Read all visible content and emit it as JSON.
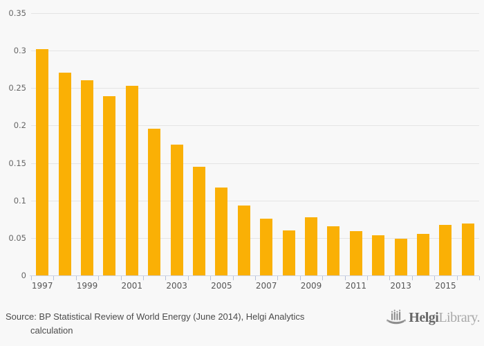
{
  "chart_data": {
    "type": "bar",
    "title": "",
    "categories": [
      "1997",
      "1998",
      "1999",
      "2000",
      "2001",
      "2002",
      "2003",
      "2004",
      "2005",
      "2006",
      "2007",
      "2008",
      "2009",
      "2010",
      "2011",
      "2012",
      "2013",
      "2014",
      "2015",
      "2016"
    ],
    "values": [
      0.302,
      0.271,
      0.26,
      0.239,
      0.253,
      0.196,
      0.175,
      0.145,
      0.117,
      0.093,
      0.076,
      0.06,
      0.078,
      0.066,
      0.059,
      0.054,
      0.049,
      0.055,
      0.067,
      0.069
    ],
    "ylim": [
      0,
      0.35
    ],
    "yticks": [
      0,
      0.05,
      0.1,
      0.15,
      0.2,
      0.25,
      0.3,
      0.35
    ],
    "ytick_labels": [
      "0",
      "0.05",
      "0.1",
      "0.15",
      "0.2",
      "0.25",
      "0.3",
      "0.35"
    ],
    "xtick_labels": [
      "1997",
      "1999",
      "2001",
      "2003",
      "2005",
      "2007",
      "2009",
      "2011",
      "2013",
      "2015"
    ],
    "grid": "horizontal",
    "legend": "none",
    "bar_color": "#fab005",
    "gridline_color": "#e4e4e4",
    "axis_line_color": "#ccd3e4",
    "tick_mark_color": "#b6c0da",
    "xlabel_color": "#555555",
    "ylabel_color": "#666666"
  },
  "footer": {
    "source_line1": "Source: BP Statistical Review of World Energy (June 2014), Helgi Analytics",
    "source_line2": "calculation",
    "logo": {
      "bold": "Helgi",
      "light": "Library.",
      "icon": "ship-icon"
    }
  }
}
